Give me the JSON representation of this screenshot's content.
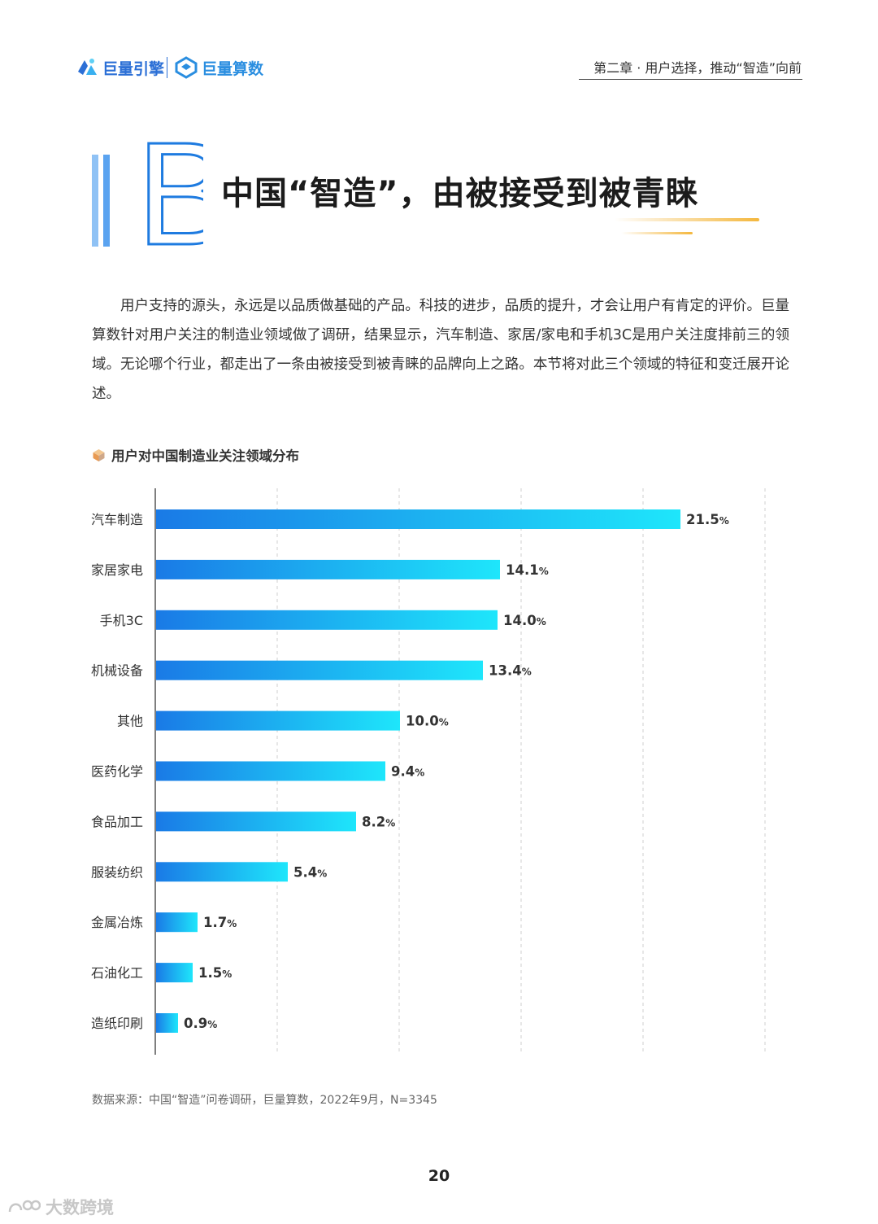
{
  "header": {
    "brand1": "巨量引擎",
    "brand2": "巨量算数",
    "chapter": "第二章 · 用户选择，推动“智造”向前",
    "brand_color": "#2b6fd6"
  },
  "section": {
    "letter": "B",
    "title": "中国“智造”，由被接受到被青睐"
  },
  "intro": "用户支持的源头，永远是以品质做基础的产品。科技的进步，品质的提升，才会让用户有肯定的评价。巨量算数针对用户关注的制造业领域做了调研，结果显示，汽车制造、家居/家电和手机3C是用户关注度排前三的领域。无论哪个行业，都走出了一条由被接受到被青睐的品牌向上之路。本节将对此三个领域的特征和变迁展开论述。",
  "chart_data": {
    "type": "bar",
    "orientation": "horizontal",
    "title": "用户对中国制造业关注领域分布",
    "categories": [
      "汽车制造",
      "家居家电",
      "手机3C",
      "机械设备",
      "其他",
      "医药化学",
      "食品加工",
      "服装纺织",
      "金属冶炼",
      "石油化工",
      "造纸印刷"
    ],
    "values": [
      21.5,
      14.1,
      14.0,
      13.4,
      10.0,
      9.4,
      8.2,
      5.4,
      1.7,
      1.5,
      0.9
    ],
    "value_labels": [
      "21.5",
      "14.1",
      "14.0",
      "13.4",
      "10.0",
      "9.4",
      "8.2",
      "5.4",
      "1.7",
      "1.5",
      "0.9"
    ],
    "unit": "%",
    "xlim": [
      0,
      25
    ],
    "grid": true,
    "bar_color_start": "#1a7ae6",
    "bar_color_end": "#1ee6fb"
  },
  "source": "数据来源：中国“智造”问卷调研，巨量算数，2022年9月，N=3345",
  "page_number": "20",
  "watermark": "大数跨境"
}
